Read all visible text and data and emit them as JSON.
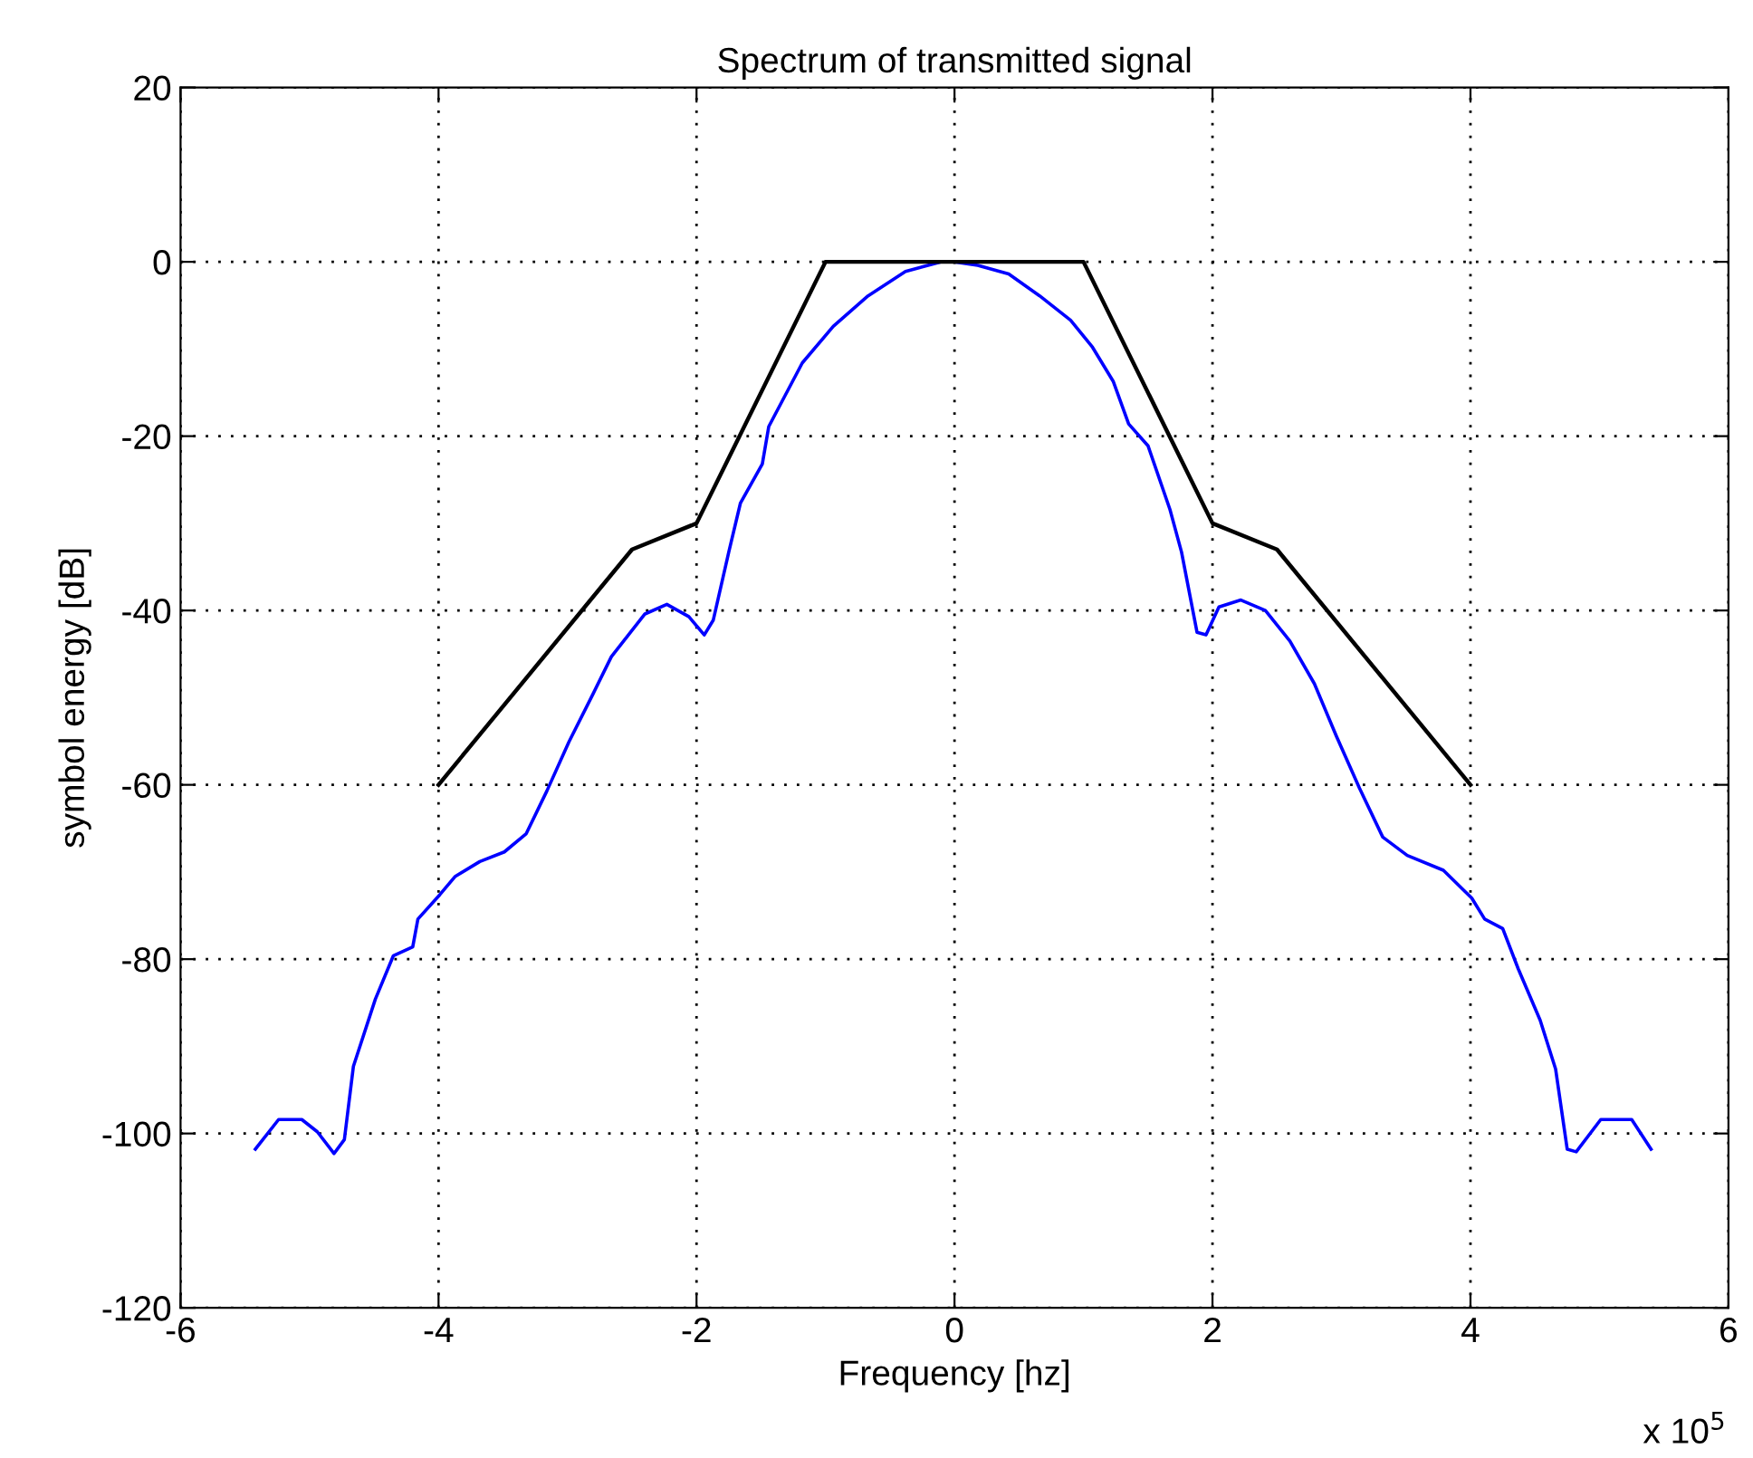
{
  "chart_data": {
    "type": "line",
    "title": "Spectrum of transmitted signal",
    "xlabel": "Frequency [hz]",
    "ylabel": "symbol energy [dB]",
    "annotations": [
      "x 10$^{5}$"
    ],
    "xlim": [
      -6,
      6
    ],
    "xticks": [
      -6,
      -4,
      -2,
      0,
      2,
      4,
      6
    ],
    "ylim": [
      -120,
      20
    ],
    "yticks": [
      -120,
      -100,
      -80,
      -60,
      -40,
      -20,
      0,
      20
    ],
    "grid": true,
    "series": [
      {
        "color": "#0000ff",
        "x": [
          -5.42,
          -5.24,
          -5.06,
          -4.94,
          -4.81,
          -4.73,
          -4.66,
          -4.49,
          -4.35,
          -4.2,
          -4.16,
          -3.99,
          -3.87,
          -3.68,
          -3.49,
          -3.32,
          -3.16,
          -2.99,
          -2.8,
          -2.66,
          -2.4,
          -2.23,
          -2.06,
          -1.94,
          -1.87,
          -1.75,
          -1.66,
          -1.49,
          -1.44,
          -1.18,
          -0.94,
          -0.67,
          -0.38,
          -0.1,
          0,
          0.18,
          0.42,
          0.66,
          0.9,
          1.07,
          1.23,
          1.35,
          1.5,
          1.67,
          1.76,
          1.88,
          1.95,
          2.05,
          2.22,
          2.41,
          2.6,
          2.79,
          2.96,
          3.14,
          3.32,
          3.51,
          3.79,
          4.01,
          4.11,
          4.25,
          4.37,
          4.54,
          4.66,
          4.75,
          4.82,
          5.01,
          5.25,
          5.4
        ],
        "values": [
          -101.8,
          -98.4,
          -98.4,
          -99.8,
          -102.3,
          -100.7,
          -92.3,
          -84.6,
          -79.6,
          -78.6,
          -75.4,
          -72.6,
          -70.5,
          -68.8,
          -67.7,
          -65.6,
          -60.7,
          -55.1,
          -49.5,
          -45.3,
          -40.4,
          -39.3,
          -40.7,
          -42.8,
          -41.1,
          -33.3,
          -27.7,
          -23.2,
          -18.9,
          -11.6,
          -7.4,
          -3.9,
          -1.1,
          0,
          0,
          -0.4,
          -1.4,
          -3.9,
          -6.7,
          -9.8,
          -13.7,
          -18.6,
          -21.1,
          -28.4,
          -33.3,
          -42.5,
          -42.8,
          -39.6,
          -38.8,
          -40.0,
          -43.5,
          -48.4,
          -54.4,
          -60.4,
          -66.0,
          -68.1,
          -69.8,
          -73.0,
          -75.4,
          -76.5,
          -81.1,
          -87.0,
          -92.6,
          -101.8,
          -102.1,
          -98.4,
          -98.4,
          -101.8
        ]
      },
      {
        "color": "#000000",
        "x": [
          -4,
          -2.5,
          -2,
          -1,
          1,
          2,
          2.5,
          4
        ],
        "values": [
          -60,
          -33,
          -30,
          0,
          0,
          -30,
          -33,
          -60
        ]
      }
    ]
  }
}
